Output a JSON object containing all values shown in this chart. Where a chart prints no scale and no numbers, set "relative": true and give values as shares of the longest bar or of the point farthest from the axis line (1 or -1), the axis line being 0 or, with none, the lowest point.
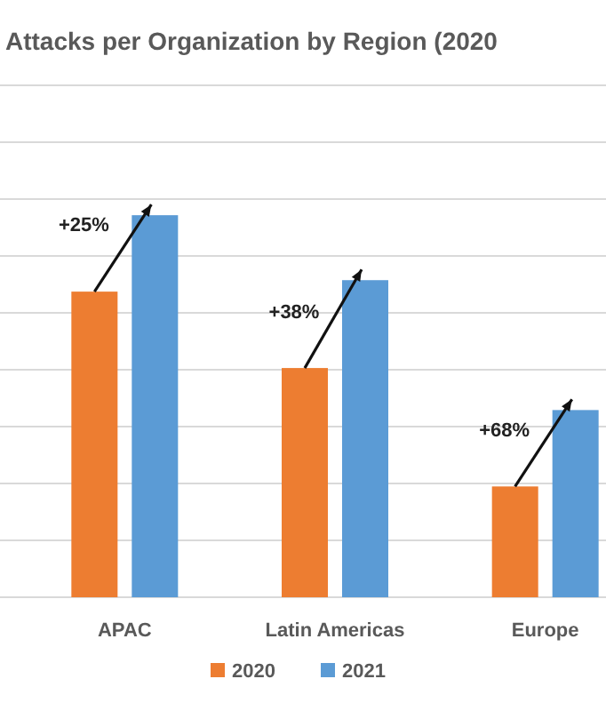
{
  "chart_data": {
    "type": "bar",
    "title": "Attacks per Organization by Region (2020",
    "categories": [
      "APAC",
      "Latin Americas",
      "Europe"
    ],
    "relative": true,
    "series": [
      {
        "name": "2020",
        "color": "#ed7d31",
        "values": [
          0.8,
          0.6,
          0.29
        ]
      },
      {
        "name": "2021",
        "color": "#5b9bd5",
        "values": [
          1,
          0.83,
          0.49
        ]
      }
    ],
    "annotations": [
      "+25%",
      "+38%",
      "+68%"
    ],
    "grid": true,
    "legend": "bottom"
  }
}
